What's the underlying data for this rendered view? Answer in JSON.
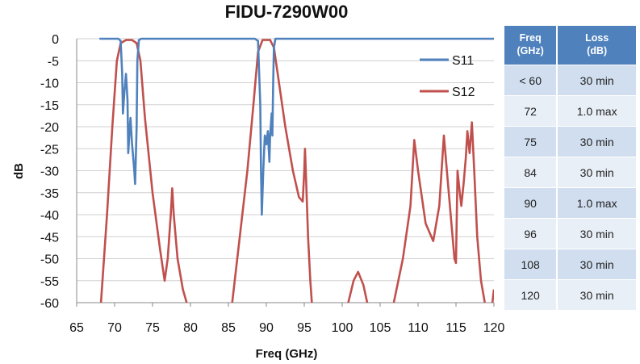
{
  "chart_data": {
    "type": "line",
    "title": "FIDU-7290W00",
    "xlabel": "Freq (GHz)",
    "ylabel": "dB",
    "xlim": [
      65,
      120
    ],
    "ylim": [
      -60,
      0
    ],
    "xticks": [
      65,
      70,
      75,
      80,
      85,
      90,
      95,
      100,
      105,
      110,
      115,
      120
    ],
    "yticks": [
      0,
      -5,
      -10,
      -15,
      -20,
      -25,
      -30,
      -35,
      -40,
      -45,
      -50,
      -55,
      -60
    ],
    "grid": "horizontal",
    "legend": "top-right",
    "series": [
      {
        "name": "S11",
        "color": "#4f81bd",
        "points": [
          [
            68,
            0
          ],
          [
            70.5,
            0
          ],
          [
            70.8,
            -0.5
          ],
          [
            71.0,
            -8
          ],
          [
            71.1,
            -17
          ],
          [
            71.3,
            -12
          ],
          [
            71.5,
            -8
          ],
          [
            71.7,
            -14
          ],
          [
            71.8,
            -26
          ],
          [
            72.0,
            -20
          ],
          [
            72.1,
            -18
          ],
          [
            72.3,
            -24
          ],
          [
            72.4,
            -26
          ],
          [
            72.6,
            -30
          ],
          [
            72.7,
            -33
          ],
          [
            72.9,
            -20
          ],
          [
            73.0,
            -5
          ],
          [
            73.2,
            -0.3
          ],
          [
            73.5,
            0
          ],
          [
            88.5,
            0
          ],
          [
            88.9,
            -0.5
          ],
          [
            89.2,
            -15
          ],
          [
            89.3,
            -30
          ],
          [
            89.4,
            -40
          ],
          [
            89.6,
            -30
          ],
          [
            89.8,
            -22
          ],
          [
            90.0,
            -24
          ],
          [
            90.2,
            -21
          ],
          [
            90.4,
            -28
          ],
          [
            90.5,
            -22
          ],
          [
            90.7,
            -17
          ],
          [
            90.8,
            -22
          ],
          [
            90.9,
            -10
          ],
          [
            91.0,
            -2
          ],
          [
            91.2,
            0
          ],
          [
            120,
            0
          ]
        ]
      },
      {
        "name": "S12",
        "color": "#c0504d",
        "segments": [
          [
            [
              68.2,
              -60
            ],
            [
              69.0,
              -40
            ],
            [
              69.7,
              -20
            ],
            [
              70.3,
              -5
            ],
            [
              70.8,
              -1
            ],
            [
              71.5,
              -0.3
            ],
            [
              72.3,
              -0.3
            ],
            [
              72.9,
              -1
            ],
            [
              73.4,
              -5
            ],
            [
              74.0,
              -18
            ],
            [
              75.0,
              -35
            ],
            [
              76.0,
              -48
            ],
            [
              76.6,
              -55
            ],
            [
              77.0,
              -50
            ],
            [
              77.4,
              -40
            ],
            [
              77.6,
              -34
            ],
            [
              77.8,
              -40
            ],
            [
              78.3,
              -50
            ],
            [
              79.0,
              -57
            ],
            [
              79.5,
              -60
            ]
          ],
          [
            [
              85.5,
              -60
            ],
            [
              86.5,
              -45
            ],
            [
              87.5,
              -30
            ],
            [
              88.3,
              -15
            ],
            [
              88.9,
              -3
            ],
            [
              89.5,
              -0.3
            ],
            [
              90.5,
              -0.3
            ],
            [
              91.0,
              -2
            ],
            [
              91.5,
              -8
            ],
            [
              92.5,
              -20
            ],
            [
              93.5,
              -30
            ],
            [
              94.3,
              -36
            ],
            [
              94.8,
              -37
            ],
            [
              95.0,
              -30
            ],
            [
              95.1,
              -25
            ],
            [
              95.2,
              -30
            ],
            [
              95.5,
              -45
            ],
            [
              95.8,
              -55
            ],
            [
              96.0,
              -60
            ]
          ],
          [
            [
              100.8,
              -60
            ],
            [
              101.5,
              -55
            ],
            [
              102.1,
              -53
            ],
            [
              102.8,
              -56
            ],
            [
              103.3,
              -60
            ]
          ],
          [
            [
              106.8,
              -60
            ],
            [
              108.0,
              -50
            ],
            [
              109.0,
              -38
            ],
            [
              109.5,
              -23
            ],
            [
              110.0,
              -30
            ],
            [
              111.0,
              -42
            ],
            [
              112.0,
              -46
            ],
            [
              112.8,
              -38
            ],
            [
              113.4,
              -22
            ],
            [
              113.8,
              -30
            ],
            [
              114.3,
              -40
            ],
            [
              114.8,
              -50
            ],
            [
              115.0,
              -51
            ],
            [
              115.2,
              -30
            ],
            [
              115.5,
              -35
            ],
            [
              115.7,
              -38
            ],
            [
              116.0,
              -33
            ],
            [
              116.3,
              -27
            ],
            [
              116.5,
              -21
            ],
            [
              116.8,
              -26
            ],
            [
              117.1,
              -19
            ],
            [
              117.4,
              -30
            ],
            [
              117.8,
              -45
            ],
            [
              118.3,
              -55
            ],
            [
              118.8,
              -60
            ]
          ],
          [
            [
              119.8,
              -60
            ],
            [
              120.0,
              -57
            ]
          ]
        ]
      }
    ]
  },
  "table": {
    "headers": [
      "Freq (GHz)",
      "Loss (dB)"
    ],
    "rows": [
      [
        "< 60",
        "30 min"
      ],
      [
        "72",
        "1.0 max"
      ],
      [
        "75",
        "30 min"
      ],
      [
        "84",
        "30 min"
      ],
      [
        "90",
        "1.0 max"
      ],
      [
        "96",
        "30 min"
      ],
      [
        "108",
        "30 min"
      ],
      [
        "120",
        "30 min"
      ]
    ]
  }
}
